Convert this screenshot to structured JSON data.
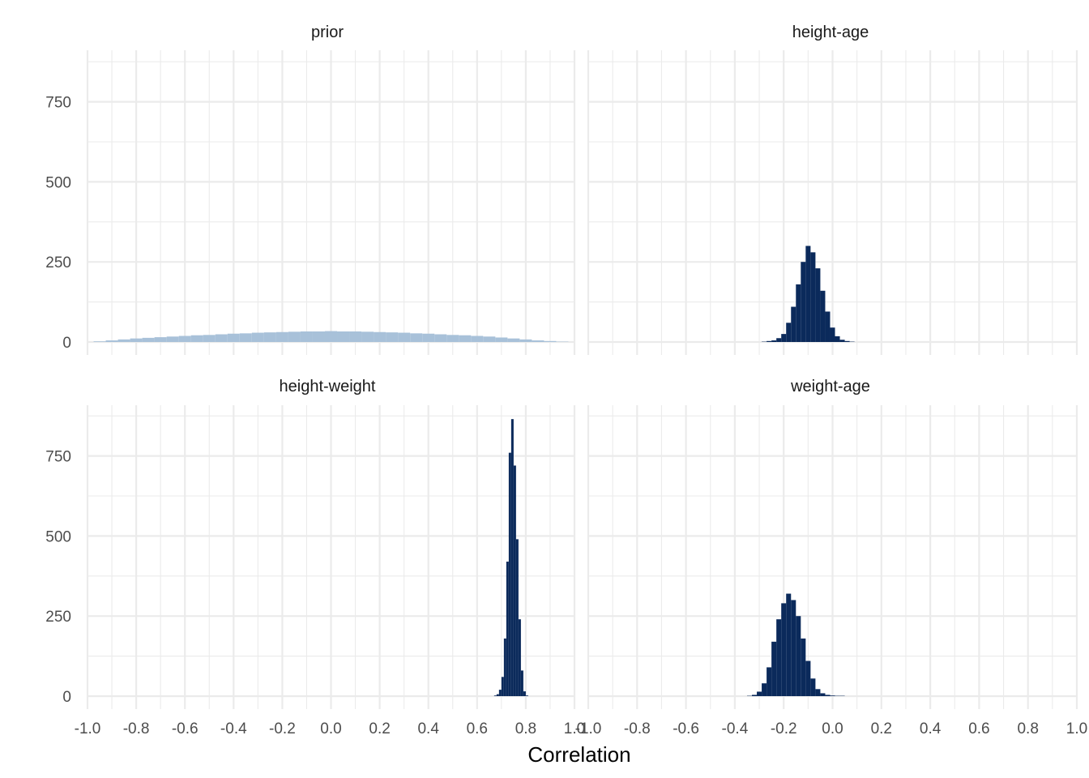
{
  "chart_data": {
    "type": "bar",
    "layout": "facet-grid 2x2",
    "xlabel": "Correlation",
    "ylabel": "",
    "xlim": [
      -1.0,
      1.0
    ],
    "ylim": [
      0,
      875
    ],
    "x_ticks": [
      "-1.0",
      "-0.8",
      "-0.6",
      "-0.4",
      "-0.2",
      "0.0",
      "0.2",
      "0.4",
      "0.6",
      "0.8",
      "1.0"
    ],
    "y_ticks": [
      "0",
      "250",
      "500",
      "750"
    ],
    "grid": true,
    "colors": {
      "prior": "#a8c1d9",
      "posterior": "#0b2a5b",
      "grid": "#ebebeb"
    },
    "facets": [
      {
        "title": "prior",
        "color": "#a8c1d9",
        "bins": [
          {
            "x": -0.95,
            "y": 2
          },
          {
            "x": -0.9,
            "y": 5
          },
          {
            "x": -0.85,
            "y": 8
          },
          {
            "x": -0.8,
            "y": 11
          },
          {
            "x": -0.75,
            "y": 13
          },
          {
            "x": -0.7,
            "y": 15
          },
          {
            "x": -0.65,
            "y": 17
          },
          {
            "x": -0.6,
            "y": 19
          },
          {
            "x": -0.55,
            "y": 21
          },
          {
            "x": -0.5,
            "y": 22
          },
          {
            "x": -0.45,
            "y": 24
          },
          {
            "x": -0.4,
            "y": 26
          },
          {
            "x": -0.35,
            "y": 27
          },
          {
            "x": -0.3,
            "y": 29
          },
          {
            "x": -0.25,
            "y": 30
          },
          {
            "x": -0.2,
            "y": 31
          },
          {
            "x": -0.15,
            "y": 32
          },
          {
            "x": -0.1,
            "y": 33
          },
          {
            "x": -0.05,
            "y": 33
          },
          {
            "x": 0.0,
            "y": 34
          },
          {
            "x": 0.05,
            "y": 33
          },
          {
            "x": 0.1,
            "y": 33
          },
          {
            "x": 0.15,
            "y": 32
          },
          {
            "x": 0.2,
            "y": 31
          },
          {
            "x": 0.25,
            "y": 30
          },
          {
            "x": 0.3,
            "y": 29
          },
          {
            "x": 0.35,
            "y": 27
          },
          {
            "x": 0.4,
            "y": 26
          },
          {
            "x": 0.45,
            "y": 24
          },
          {
            "x": 0.5,
            "y": 22
          },
          {
            "x": 0.55,
            "y": 21
          },
          {
            "x": 0.6,
            "y": 19
          },
          {
            "x": 0.65,
            "y": 17
          },
          {
            "x": 0.7,
            "y": 14
          },
          {
            "x": 0.75,
            "y": 11
          },
          {
            "x": 0.8,
            "y": 8
          },
          {
            "x": 0.85,
            "y": 5
          },
          {
            "x": 0.9,
            "y": 3
          },
          {
            "x": 0.95,
            "y": 1
          }
        ]
      },
      {
        "title": "height-age",
        "color": "#0b2a5b",
        "bins": [
          {
            "x": -0.28,
            "y": 1
          },
          {
            "x": -0.26,
            "y": 3
          },
          {
            "x": -0.24,
            "y": 5
          },
          {
            "x": -0.22,
            "y": 12
          },
          {
            "x": -0.2,
            "y": 25
          },
          {
            "x": -0.18,
            "y": 60
          },
          {
            "x": -0.16,
            "y": 110
          },
          {
            "x": -0.14,
            "y": 180
          },
          {
            "x": -0.12,
            "y": 250
          },
          {
            "x": -0.1,
            "y": 300
          },
          {
            "x": -0.08,
            "y": 280
          },
          {
            "x": -0.06,
            "y": 230
          },
          {
            "x": -0.04,
            "y": 160
          },
          {
            "x": -0.02,
            "y": 95
          },
          {
            "x": 0.0,
            "y": 45
          },
          {
            "x": 0.02,
            "y": 18
          },
          {
            "x": 0.04,
            "y": 7
          },
          {
            "x": 0.06,
            "y": 3
          },
          {
            "x": 0.08,
            "y": 1
          }
        ]
      },
      {
        "title": "height-weight",
        "color": "#0b2a5b",
        "bins": [
          {
            "x": 0.675,
            "y": 2
          },
          {
            "x": 0.685,
            "y": 6
          },
          {
            "x": 0.695,
            "y": 20
          },
          {
            "x": 0.705,
            "y": 60
          },
          {
            "x": 0.715,
            "y": 180
          },
          {
            "x": 0.725,
            "y": 420
          },
          {
            "x": 0.735,
            "y": 760
          },
          {
            "x": 0.745,
            "y": 865
          },
          {
            "x": 0.755,
            "y": 720
          },
          {
            "x": 0.765,
            "y": 490
          },
          {
            "x": 0.775,
            "y": 240
          },
          {
            "x": 0.785,
            "y": 80
          },
          {
            "x": 0.795,
            "y": 15
          },
          {
            "x": 0.805,
            "y": 2
          }
        ]
      },
      {
        "title": "weight-age",
        "color": "#0b2a5b",
        "bins": [
          {
            "x": -0.34,
            "y": 1
          },
          {
            "x": -0.32,
            "y": 4
          },
          {
            "x": -0.3,
            "y": 14
          },
          {
            "x": -0.28,
            "y": 40
          },
          {
            "x": -0.26,
            "y": 90
          },
          {
            "x": -0.24,
            "y": 170
          },
          {
            "x": -0.22,
            "y": 240
          },
          {
            "x": -0.2,
            "y": 290
          },
          {
            "x": -0.18,
            "y": 320
          },
          {
            "x": -0.16,
            "y": 300
          },
          {
            "x": -0.14,
            "y": 250
          },
          {
            "x": -0.12,
            "y": 180
          },
          {
            "x": -0.1,
            "y": 110
          },
          {
            "x": -0.08,
            "y": 55
          },
          {
            "x": -0.06,
            "y": 22
          },
          {
            "x": -0.04,
            "y": 9
          },
          {
            "x": -0.02,
            "y": 4
          },
          {
            "x": 0.0,
            "y": 2
          },
          {
            "x": 0.02,
            "y": 1
          },
          {
            "x": 0.04,
            "y": 1
          }
        ]
      }
    ]
  }
}
